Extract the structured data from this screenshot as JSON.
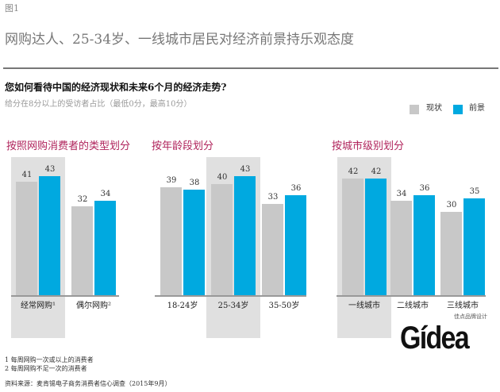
{
  "figure_label": "图1",
  "title": "网购达人、25-34岁、一线城市居民对经济前景持乐观态度",
  "question": "您如何看待中国的经济现状和未来6个月的经济走势?",
  "subtitle": "给分在8分以上的受访者占比（最低0分，最高10分）",
  "legend": [
    {
      "name": "现状",
      "color": "#c8c8c8"
    },
    {
      "name": "前景",
      "color": "#00a9e0"
    }
  ],
  "chart_data": [
    {
      "type": "bar",
      "title": "按照网购消费者的类型划分",
      "categories": [
        "经常网购¹",
        "偶尔网购²"
      ],
      "highlight": 0,
      "series": [
        {
          "name": "现状",
          "values": [
            41,
            32
          ]
        },
        {
          "name": "前景",
          "values": [
            43,
            34
          ]
        }
      ]
    },
    {
      "type": "bar",
      "title": "按年龄段划分",
      "categories": [
        "18-24岁",
        "25-34岁",
        "35-50岁"
      ],
      "highlight": 1,
      "series": [
        {
          "name": "现状",
          "values": [
            39,
            40,
            33
          ]
        },
        {
          "name": "前景",
          "values": [
            38,
            43,
            36
          ]
        }
      ]
    },
    {
      "type": "bar",
      "title": "按城市级别划分",
      "categories": [
        "一线城市",
        "二线城市",
        "三线城市"
      ],
      "highlight": 0,
      "series": [
        {
          "name": "现状",
          "values": [
            42,
            34,
            30
          ]
        },
        {
          "name": "前景",
          "values": [
            42,
            36,
            35
          ]
        }
      ]
    }
  ],
  "footnotes": [
    "1 每周网购一次或以上的消费者",
    "2 每周网购不足一次的消费者"
  ],
  "source": "资料来源：麦肯锡电子商务消费者信心调查（2015年9月）",
  "logo": {
    "text": "Gídea",
    "tagline": "佳点品牌设计"
  }
}
